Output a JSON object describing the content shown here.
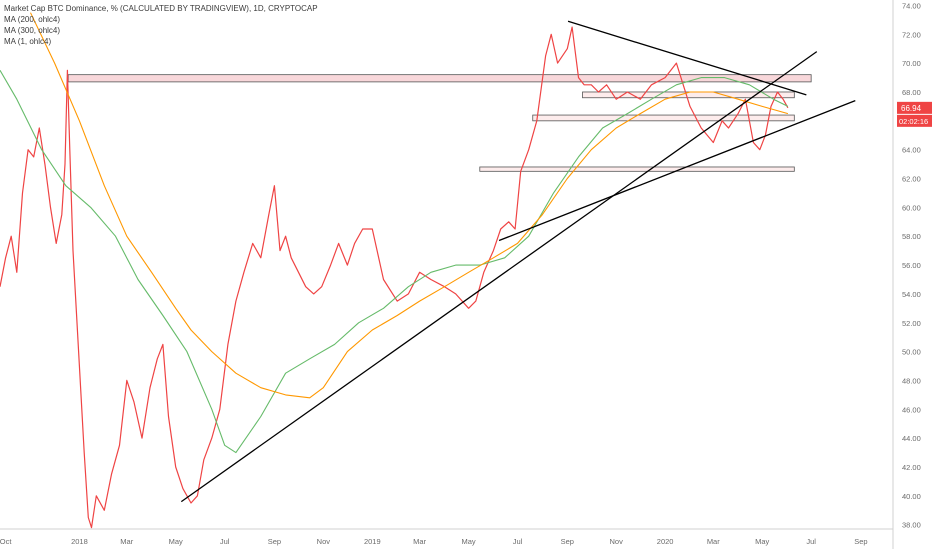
{
  "chart_data": {
    "type": "line",
    "title": "Market Cap BTC Dominance, % (CALCULATED BY TRADINGVIEW), 1D, CRYPTOCAP",
    "indicators": [
      "MA (200, ohlc4)",
      "MA (300, ohlc4)",
      "MA (1, ohlc4)"
    ],
    "x_ticks": [
      "Oct",
      "2018",
      "Mar",
      "May",
      "Jul",
      "Sep",
      "Nov",
      "2019",
      "Mar",
      "May",
      "Jul",
      "Sep",
      "Nov",
      "2020",
      "Mar",
      "May",
      "Jul",
      "Sep"
    ],
    "y_ticks": [
      "74.00",
      "72.00",
      "70.00",
      "68.00",
      "66.00",
      "64.00",
      "62.00",
      "60.00",
      "58.00",
      "56.00",
      "54.00",
      "52.00",
      "50.00",
      "48.00",
      "46.00",
      "44.00",
      "42.00",
      "40.00",
      "38.00"
    ],
    "ylim": [
      37.7,
      74.1
    ],
    "last_value_label": "66.94",
    "countdown_label": "02:02:16",
    "colors": {
      "price": "#ef4444",
      "ma200": "#66bb6a",
      "ma300": "#ff9800",
      "trendline": "#000000",
      "zone_fill": "#f8d7da",
      "zone_fill_light": "#fdecec",
      "zone_stroke": "#555555",
      "axis_text": "#6b6b6b"
    },
    "series": [
      {
        "name": "MA (1, ohlc4)",
        "color": "#ef4444",
        "x": [
          "2017-09-24",
          "2017-10-01",
          "2017-10-08",
          "2017-10-15",
          "2017-10-22",
          "2017-10-29",
          "2017-11-05",
          "2017-11-12",
          "2017-11-19",
          "2017-11-26",
          "2017-12-03",
          "2017-12-10",
          "2017-12-14",
          "2017-12-17",
          "2017-12-20",
          "2017-12-24",
          "2017-12-28",
          "2018-01-02",
          "2018-01-07",
          "2018-01-12",
          "2018-01-16",
          "2018-01-22",
          "2018-02-01",
          "2018-02-10",
          "2018-02-20",
          "2018-03-01",
          "2018-03-10",
          "2018-03-20",
          "2018-03-30",
          "2018-04-08",
          "2018-04-15",
          "2018-04-22",
          "2018-05-01",
          "2018-05-10",
          "2018-05-20",
          "2018-05-28",
          "2018-06-05",
          "2018-06-15",
          "2018-06-25",
          "2018-07-05",
          "2018-07-15",
          "2018-07-25",
          "2018-08-05",
          "2018-08-15",
          "2018-08-25",
          "2018-09-01",
          "2018-09-08",
          "2018-09-15",
          "2018-09-22",
          "2018-10-01",
          "2018-10-10",
          "2018-10-20",
          "2018-10-30",
          "2018-11-10",
          "2018-11-20",
          "2018-12-01",
          "2018-12-10",
          "2018-12-20",
          "2019-01-01",
          "2019-01-15",
          "2019-02-01",
          "2019-02-15",
          "2019-03-01",
          "2019-03-15",
          "2019-04-01",
          "2019-04-15",
          "2019-05-01",
          "2019-05-10",
          "2019-05-20",
          "2019-06-01",
          "2019-06-10",
          "2019-06-20",
          "2019-06-28",
          "2019-07-05",
          "2019-07-15",
          "2019-07-25",
          "2019-08-05",
          "2019-08-12",
          "2019-08-20",
          "2019-09-01",
          "2019-09-07",
          "2019-09-15",
          "2019-09-22",
          "2019-10-01",
          "2019-10-10",
          "2019-10-20",
          "2019-11-01",
          "2019-11-15",
          "2019-12-01",
          "2019-12-15",
          "2020-01-01",
          "2020-01-15",
          "2020-02-01",
          "2020-02-15",
          "2020-03-01",
          "2020-03-12",
          "2020-03-20",
          "2020-04-01",
          "2020-04-10",
          "2020-04-20",
          "2020-04-28",
          "2020-05-05",
          "2020-05-12",
          "2020-05-20",
          "2020-05-27",
          "2020-06-02"
        ],
        "y": [
          54.5,
          56.5,
          58.0,
          55.5,
          61.0,
          64.0,
          63.5,
          65.5,
          63.0,
          60.0,
          57.5,
          59.5,
          63.0,
          69.5,
          64.0,
          57.0,
          53.0,
          48.0,
          43.0,
          38.5,
          37.8,
          40.0,
          39.0,
          41.5,
          43.5,
          48.0,
          46.5,
          44.0,
          47.5,
          49.5,
          50.5,
          45.5,
          42.0,
          40.5,
          39.5,
          40.0,
          42.5,
          44.0,
          46.0,
          50.5,
          53.5,
          55.5,
          57.5,
          56.5,
          59.5,
          61.5,
          57.0,
          58.0,
          56.5,
          55.5,
          54.5,
          54.0,
          54.5,
          56.0,
          57.5,
          56.0,
          57.5,
          58.5,
          58.5,
          55.0,
          53.5,
          54.0,
          55.5,
          55.0,
          54.5,
          54.0,
          53.0,
          53.5,
          55.5,
          57.0,
          58.5,
          59.0,
          58.5,
          62.5,
          64.0,
          66.0,
          70.5,
          72.0,
          70.0,
          71.0,
          72.5,
          69.0,
          68.5,
          68.5,
          68.0,
          68.5,
          67.5,
          68.0,
          67.5,
          68.5,
          69.0,
          70.0,
          67.0,
          65.5,
          64.5,
          66.0,
          65.5,
          66.5,
          67.5,
          64.5,
          64.0,
          65.0,
          67.0,
          68.0,
          67.5,
          66.9
        ]
      },
      {
        "name": "MA (200, ohlc4)",
        "color": "#66bb6a",
        "x": [
          "2017-09-24",
          "2017-10-15",
          "2017-11-15",
          "2017-12-15",
          "2018-01-15",
          "2018-02-15",
          "2018-03-15",
          "2018-04-15",
          "2018-05-15",
          "2018-06-15",
          "2018-07-01",
          "2018-07-15",
          "2018-08-15",
          "2018-09-15",
          "2018-10-15",
          "2018-11-15",
          "2018-12-15",
          "2019-01-15",
          "2019-02-15",
          "2019-03-15",
          "2019-04-15",
          "2019-05-15",
          "2019-06-15",
          "2019-07-15",
          "2019-08-15",
          "2019-09-15",
          "2019-10-15",
          "2019-11-15",
          "2019-12-15",
          "2020-01-15",
          "2020-02-15",
          "2020-03-15",
          "2020-04-15",
          "2020-05-15",
          "2020-06-02"
        ],
        "y": [
          69.5,
          67.5,
          64.0,
          61.5,
          60.0,
          58.0,
          55.0,
          52.5,
          50.0,
          46.0,
          43.5,
          43.0,
          45.5,
          48.5,
          49.5,
          50.5,
          52.0,
          53.0,
          54.5,
          55.5,
          56.0,
          56.0,
          56.5,
          58.0,
          61.0,
          63.5,
          65.5,
          66.5,
          67.5,
          68.5,
          69.0,
          69.0,
          68.5,
          67.5,
          67.0
        ]
      },
      {
        "name": "MA (300, ohlc4)",
        "color": "#ff9800",
        "x": [
          "2017-11-01",
          "2017-12-01",
          "2018-01-01",
          "2018-02-01",
          "2018-03-01",
          "2018-04-01",
          "2018-05-01",
          "2018-05-20",
          "2018-06-15",
          "2018-07-15",
          "2018-08-15",
          "2018-09-15",
          "2018-10-15",
          "2018-11-01",
          "2018-12-01",
          "2019-01-01",
          "2019-02-01",
          "2019-03-01",
          "2019-04-01",
          "2019-05-01",
          "2019-06-01",
          "2019-07-01",
          "2019-08-01",
          "2019-09-01",
          "2019-10-01",
          "2019-11-01",
          "2019-12-01",
          "2020-01-01",
          "2020-02-01",
          "2020-03-01",
          "2020-04-01",
          "2020-05-01",
          "2020-06-02"
        ],
        "y": [
          73.5,
          70.0,
          66.0,
          61.5,
          58.0,
          55.5,
          53.0,
          51.5,
          50.0,
          48.5,
          47.5,
          47.0,
          46.8,
          47.5,
          50.0,
          51.5,
          52.5,
          53.5,
          54.5,
          55.5,
          56.5,
          57.5,
          59.5,
          62.0,
          64.0,
          65.5,
          66.5,
          67.5,
          68.0,
          68.0,
          67.5,
          67.0,
          66.5
        ]
      }
    ],
    "zones": [
      {
        "x": [
          "2017-12-18",
          "2020-07-01"
        ],
        "y": [
          68.7,
          69.2
        ],
        "style": "fill"
      },
      {
        "x": [
          "2019-09-20",
          "2020-06-10"
        ],
        "y": [
          67.6,
          68.0
        ],
        "style": "light"
      },
      {
        "x": [
          "2019-07-20",
          "2020-06-10"
        ],
        "y": [
          66.0,
          66.4
        ],
        "style": "light"
      },
      {
        "x": [
          "2019-05-15",
          "2020-06-10"
        ],
        "y": [
          62.5,
          62.8
        ],
        "style": "light"
      }
    ],
    "trendlines": [
      {
        "x": [
          "2018-05-08",
          "2020-07-08"
        ],
        "y": [
          39.6,
          70.8
        ]
      },
      {
        "x": [
          "2019-06-08",
          "2020-08-25"
        ],
        "y": [
          57.7,
          67.4
        ]
      },
      {
        "x": [
          "2019-09-02",
          "2020-06-25"
        ],
        "y": [
          72.9,
          67.8
        ]
      }
    ],
    "grid": false
  }
}
